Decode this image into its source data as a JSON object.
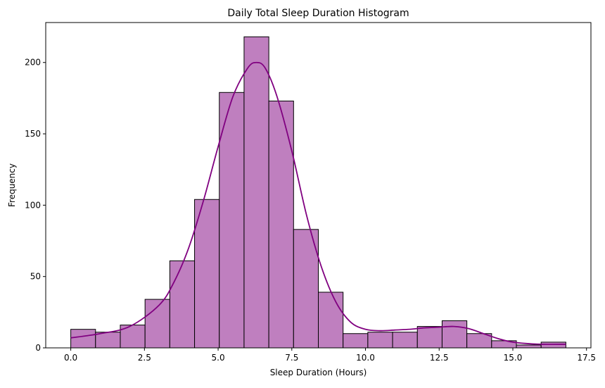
{
  "chart_data": {
    "type": "bar",
    "title": "Daily Total Sleep Duration Histogram",
    "xlabel": "Sleep Duration (Hours)",
    "ylabel": "Frequency",
    "xlim": [
      -0.85,
      17.65
    ],
    "ylim": [
      0,
      228
    ],
    "x_ticks": [
      {
        "value": 0.0,
        "label": "0.0"
      },
      {
        "value": 2.5,
        "label": "2.5"
      },
      {
        "value": 5.0,
        "label": "5.0"
      },
      {
        "value": 7.5,
        "label": "7.5"
      },
      {
        "value": 10.0,
        "label": "10.0"
      },
      {
        "value": 12.5,
        "label": "12.5"
      },
      {
        "value": 15.0,
        "label": "15.0"
      },
      {
        "value": 17.5,
        "label": "17.5"
      }
    ],
    "y_ticks": [
      {
        "value": 0,
        "label": "0"
      },
      {
        "value": 50,
        "label": "50"
      },
      {
        "value": 100,
        "label": "100"
      },
      {
        "value": 150,
        "label": "150"
      },
      {
        "value": 200,
        "label": "200"
      }
    ],
    "bin_edges": [
      0.0,
      0.84,
      1.68,
      2.52,
      3.36,
      4.2,
      5.04,
      5.88,
      6.72,
      7.56,
      8.4,
      9.24,
      10.08,
      10.92,
      11.76,
      12.6,
      13.44,
      14.28,
      15.12,
      15.96,
      16.8
    ],
    "counts": [
      13,
      11,
      16,
      34,
      61,
      104,
      179,
      218,
      173,
      83,
      39,
      10,
      11,
      11,
      15,
      19,
      10,
      5,
      2,
      4
    ],
    "kde": {
      "x": [
        0.0,
        1.0,
        2.0,
        3.0,
        3.5,
        4.0,
        4.5,
        5.0,
        5.5,
        6.0,
        6.3,
        6.6,
        7.0,
        7.5,
        8.0,
        8.5,
        9.0,
        9.5,
        10.0,
        10.5,
        11.0,
        11.5,
        12.0,
        12.5,
        13.0,
        13.5,
        14.0,
        14.5,
        15.0,
        15.5,
        16.0,
        16.8
      ],
      "y": [
        7,
        10,
        15,
        30,
        46,
        70,
        103,
        141,
        176,
        196,
        200,
        196,
        176,
        138,
        93,
        57,
        32,
        18,
        13,
        12,
        12.5,
        13,
        14,
        14.5,
        15,
        13.5,
        10,
        6.5,
        4,
        3,
        2.5,
        2.5
      ]
    },
    "colors": {
      "bar_fill": "#bf7fbf",
      "bar_edge": "#000000",
      "kde_line": "#800080"
    }
  }
}
